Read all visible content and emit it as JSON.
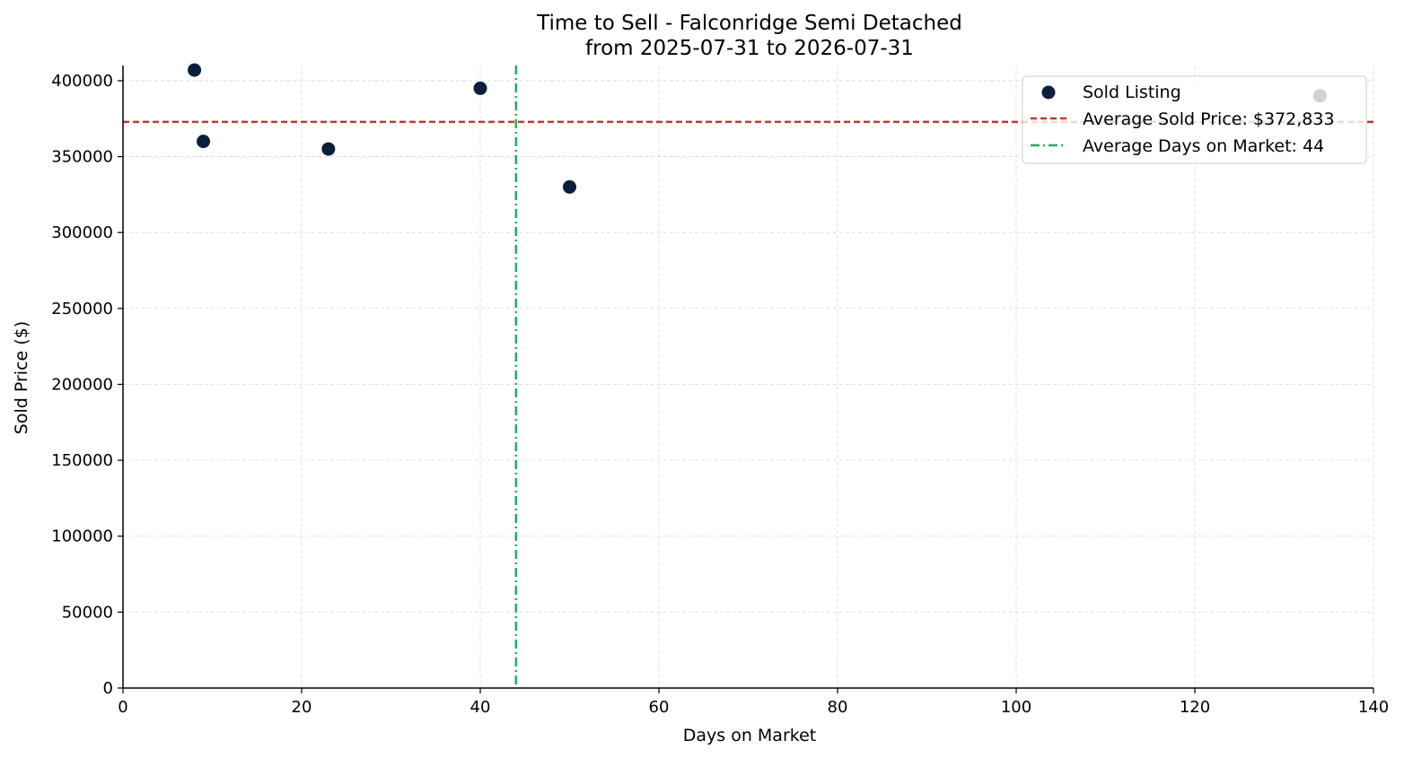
{
  "colors": {
    "points": "#0b1f3a",
    "avg_price_line": "#c0392b",
    "avg_days_line": "#27ae60",
    "grid": "#d9d9d9",
    "axis": "#000000"
  },
  "chart_data": {
    "type": "scatter",
    "title": "Time to Sell - Falconridge Semi Detached",
    "subtitle": "from 2025-07-31 to 2026-07-31",
    "xlabel": "Days on Market",
    "ylabel": "Sold Price ($)",
    "xlim": [
      0,
      140
    ],
    "ylim": [
      0,
      410000
    ],
    "xticks": [
      0,
      20,
      40,
      60,
      80,
      100,
      120,
      140
    ],
    "yticks": [
      0,
      50000,
      100000,
      150000,
      200000,
      250000,
      300000,
      350000,
      400000
    ],
    "grid": true,
    "legend_position": "top-right",
    "series": [
      {
        "name": "Sold Listing",
        "points": [
          {
            "x": 8,
            "y": 407000
          },
          {
            "x": 9,
            "y": 360000
          },
          {
            "x": 23,
            "y": 355000
          },
          {
            "x": 40,
            "y": 395000
          },
          {
            "x": 50,
            "y": 330000
          },
          {
            "x": 134,
            "y": 390000
          }
        ]
      }
    ],
    "reference_lines": {
      "avg_price": {
        "label": "Average Sold Price: $372,833",
        "value": 372833
      },
      "avg_days": {
        "label": "Average Days on Market: 44",
        "value": 44
      }
    }
  }
}
